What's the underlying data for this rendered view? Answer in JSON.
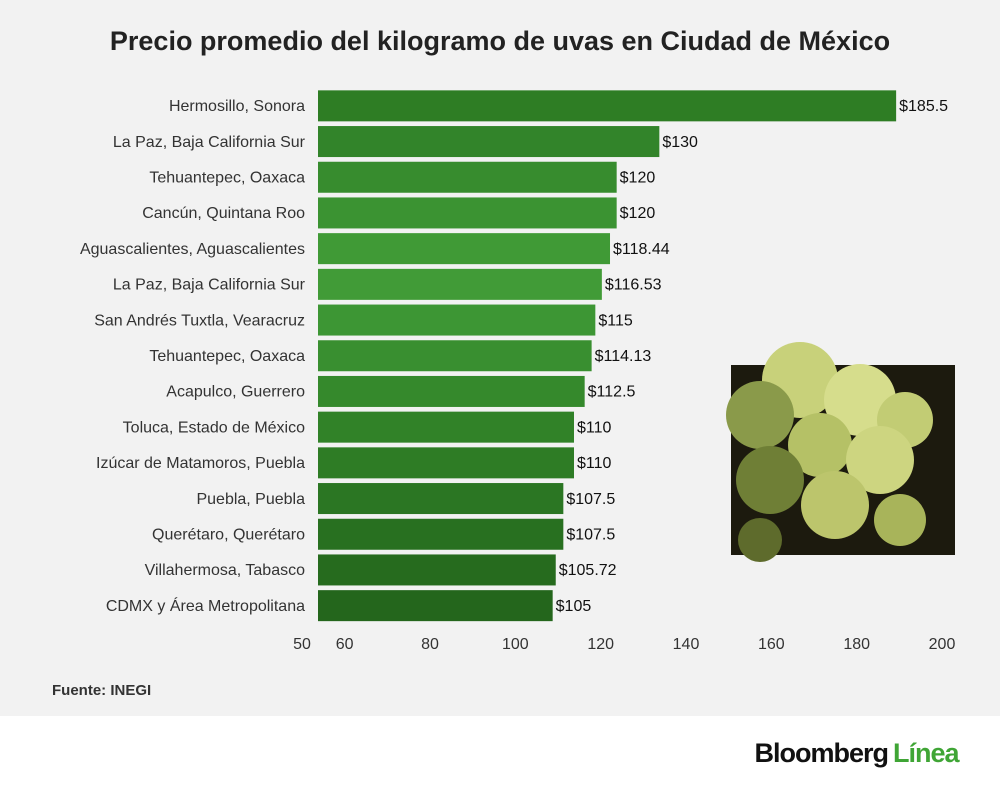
{
  "chart_data": {
    "type": "bar",
    "orientation": "horizontal",
    "title": "Precio promedio del kilogramo de uvas en Ciudad de México",
    "categories": [
      "Hermosillo, Sonora",
      "La Paz, Baja California Sur",
      "Tehuantepec, Oaxaca",
      "Cancún, Quintana Roo",
      "Aguascalientes, Aguascalientes",
      "La Paz, Baja California Sur",
      "San Andrés Tuxtla, Vearacruz",
      "Tehuantepec, Oaxaca",
      "Acapulco, Guerrero",
      "Toluca, Estado de México",
      "Izúcar de Matamoros, Puebla",
      "Puebla, Puebla",
      "Querétaro, Querétaro",
      "Villahermosa, Tabasco",
      "CDMX y Área Metropolitana"
    ],
    "values": [
      185.5,
      130,
      120,
      120,
      118.44,
      116.53,
      115,
      114.13,
      112.5,
      110,
      110,
      107.5,
      107.5,
      105.72,
      105
    ],
    "value_labels": [
      "$185.5",
      "$130",
      "$120",
      "$120",
      "$118.44",
      "$116.53",
      "$115",
      "$114.13",
      "$112.5",
      "$110",
      "$110",
      "$107.5",
      "$107.5",
      "$105.72",
      "$105"
    ],
    "colors": [
      "#2e7d24",
      "#32842a",
      "#378c2e",
      "#3b9332",
      "#409a36",
      "#419b37",
      "#3d9634",
      "#398f30",
      "#35892c",
      "#318228",
      "#2e7c25",
      "#2b7623",
      "#287020",
      "#266b1e",
      "#24661c"
    ],
    "xlim": [
      50,
      200
    ],
    "xticks": [
      50,
      60,
      80,
      100,
      120,
      140,
      160,
      180,
      200
    ],
    "source": "Fuente: INEGI"
  },
  "footer": {
    "brand": "Bloomberg",
    "brand_accent": "Línea"
  }
}
